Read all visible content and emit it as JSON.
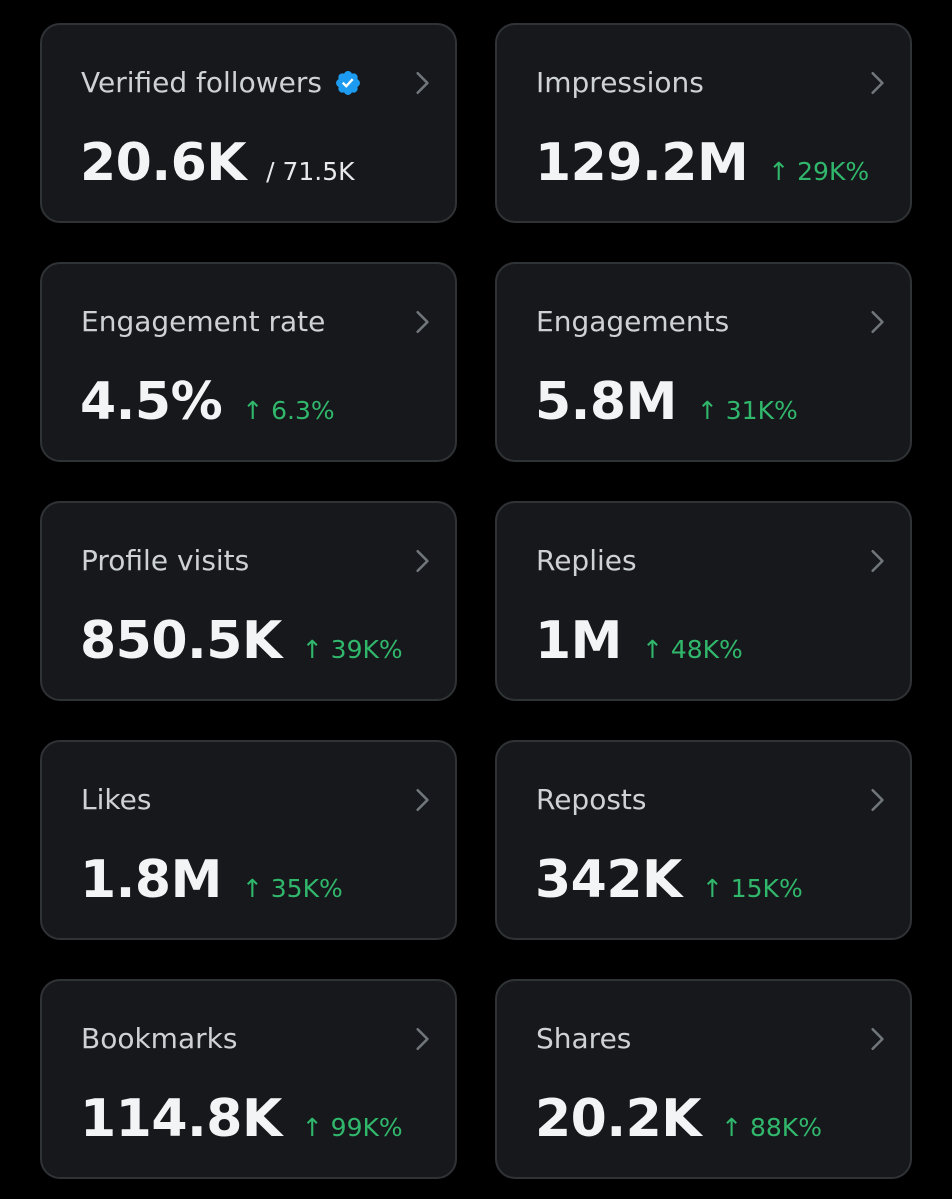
{
  "colors": {
    "background": "#000000",
    "card": "#16181c",
    "card_border": "#2f3336",
    "positive_change": "#31b76b",
    "verified_badge": "#1d9bf0"
  },
  "icons": {
    "chevron": "chevron-right-icon",
    "verified": "verified-badge-icon"
  },
  "cards": [
    {
      "label": "Verified followers",
      "value": "20.6K",
      "sub": "/ 71.5K"
    },
    {
      "label": "Impressions",
      "value": "129.2M",
      "change": "↑ 29K%"
    },
    {
      "label": "Engagement rate",
      "value": "4.5%",
      "change": "↑ 6.3%"
    },
    {
      "label": "Engagements",
      "value": "5.8M",
      "change": "↑ 31K%"
    },
    {
      "label": "Profile visits",
      "value": "850.5K",
      "change": "↑ 39K%"
    },
    {
      "label": "Replies",
      "value": "1M",
      "change": "↑ 48K%"
    },
    {
      "label": "Likes",
      "value": "1.8M",
      "change": "↑ 35K%"
    },
    {
      "label": "Reposts",
      "value": "342K",
      "change": "↑ 15K%"
    },
    {
      "label": "Bookmarks",
      "value": "114.8K",
      "change": "↑ 99K%"
    },
    {
      "label": "Shares",
      "value": "20.2K",
      "change": "↑ 88K%"
    }
  ]
}
